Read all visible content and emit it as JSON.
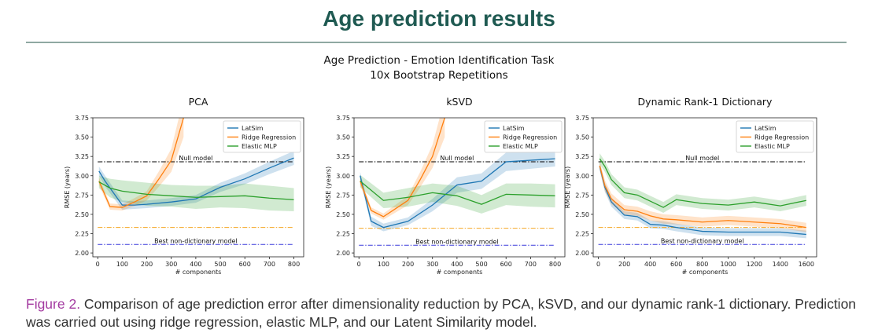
{
  "header": {
    "title": "Age prediction results"
  },
  "figure": {
    "suptitle_line1": "Age Prediction - Emotion Identification Task",
    "suptitle_line2": "10x Bootstrap Repetitions"
  },
  "caption": {
    "label": "Figure 2.",
    "text": " Comparison of age prediction error after dimensionality reduction by PCA, kSVD, and our dynamic rank-1 dictionary. Prediction was carried out using ridge regression, elastic MLP, and our Latent Similarity model."
  },
  "colors": {
    "latsim": "#1f77b4",
    "ridge": "#ff7f0e",
    "mlp": "#2ca02c",
    "null": "#000000",
    "best_orange": "#f5a623",
    "best_blue": "#3b3bdb"
  },
  "chart_data": [
    {
      "type": "line",
      "title": "PCA",
      "xlabel": "# components",
      "ylabel": "RMSE (years)",
      "xlim": [
        -20,
        840
      ],
      "ylim": [
        1.95,
        3.75
      ],
      "xticks": [
        0,
        100,
        200,
        300,
        400,
        500,
        600,
        700,
        800
      ],
      "yticks": [
        2.0,
        2.25,
        2.5,
        2.75,
        3.0,
        3.25,
        3.5,
        3.75
      ],
      "legend_position": "top-right",
      "series": [
        {
          "name": "LatSim",
          "color": "#1f77b4",
          "x": [
            5,
            30,
            100,
            150,
            200,
            300,
            400,
            500,
            600,
            700,
            800
          ],
          "y": [
            3.06,
            2.93,
            2.62,
            2.62,
            2.63,
            2.66,
            2.7,
            2.85,
            2.96,
            3.1,
            3.23
          ],
          "band": [
            0.06,
            0.07,
            0.06,
            0.05,
            0.05,
            0.05,
            0.05,
            0.06,
            0.07,
            0.08,
            0.09
          ]
        },
        {
          "name": "Ridge Regression",
          "color": "#ff7f0e",
          "x": [
            5,
            50,
            100,
            150,
            200,
            250,
            300,
            350
          ],
          "y": [
            2.93,
            2.6,
            2.59,
            2.66,
            2.74,
            2.96,
            3.2,
            3.75
          ],
          "band": [
            0.05,
            0.04,
            0.04,
            0.05,
            0.06,
            0.1,
            0.15,
            0.25
          ]
        },
        {
          "name": "Elastic MLP",
          "color": "#2ca02c",
          "x": [
            5,
            50,
            100,
            200,
            300,
            400,
            500,
            600,
            700,
            800
          ],
          "y": [
            2.92,
            2.84,
            2.8,
            2.76,
            2.74,
            2.72,
            2.73,
            2.74,
            2.71,
            2.69
          ],
          "band": [
            0.08,
            0.12,
            0.14,
            0.15,
            0.14,
            0.15,
            0.14,
            0.16,
            0.16,
            0.15
          ]
        }
      ],
      "reference_lines": [
        {
          "label": "Null model",
          "y": 3.18,
          "color": "#000000",
          "style": "dashdot"
        },
        {
          "label": "",
          "y": 2.33,
          "color": "#f5a623",
          "style": "dashdot"
        },
        {
          "label": "Best non-dictionary model",
          "y": 2.11,
          "color": "#3b3bdb",
          "style": "dashdot"
        }
      ]
    },
    {
      "type": "line",
      "title": "kSVD",
      "xlabel": "# components",
      "ylabel": "RMSE (years)",
      "xlim": [
        -20,
        840
      ],
      "ylim": [
        1.95,
        3.75
      ],
      "xticks": [
        0,
        100,
        200,
        300,
        400,
        500,
        600,
        700,
        800
      ],
      "yticks": [
        2.0,
        2.25,
        2.5,
        2.75,
        3.0,
        3.25,
        3.5,
        3.75
      ],
      "legend_position": "top-right",
      "series": [
        {
          "name": "LatSim",
          "color": "#1f77b4",
          "x": [
            5,
            50,
            100,
            200,
            300,
            400,
            500,
            600,
            700,
            800
          ],
          "y": [
            3.0,
            2.41,
            2.33,
            2.41,
            2.62,
            2.88,
            2.93,
            3.18,
            3.2,
            3.22
          ],
          "band": [
            0.05,
            0.06,
            0.05,
            0.05,
            0.08,
            0.1,
            0.1,
            0.12,
            0.11,
            0.1
          ]
        },
        {
          "name": "Ridge Regression",
          "color": "#ff7f0e",
          "x": [
            5,
            50,
            100,
            200,
            250,
            300,
            350
          ],
          "y": [
            2.93,
            2.55,
            2.47,
            2.68,
            2.95,
            3.25,
            3.75
          ],
          "band": [
            0.05,
            0.04,
            0.04,
            0.06,
            0.1,
            0.15,
            0.25
          ]
        },
        {
          "name": "Elastic MLP",
          "color": "#2ca02c",
          "x": [
            5,
            100,
            200,
            300,
            400,
            500,
            600,
            700,
            800
          ],
          "y": [
            2.93,
            2.68,
            2.72,
            2.78,
            2.74,
            2.63,
            2.76,
            2.75,
            2.74
          ],
          "band": [
            0.08,
            0.1,
            0.12,
            0.12,
            0.13,
            0.12,
            0.14,
            0.15,
            0.15
          ]
        }
      ],
      "reference_lines": [
        {
          "label": "Null model",
          "y": 3.18,
          "color": "#000000",
          "style": "dashdot"
        },
        {
          "label": "",
          "y": 2.32,
          "color": "#f5a623",
          "style": "dashdot"
        },
        {
          "label": "Best non-dictionary model",
          "y": 2.1,
          "color": "#3b3bdb",
          "style": "dashdot"
        }
      ]
    },
    {
      "type": "line",
      "title": "Dynamic Rank-1 Dictionary",
      "xlabel": "# components",
      "ylabel": "RMSE (years)",
      "xlim": [
        -40,
        1680
      ],
      "ylim": [
        1.95,
        3.75
      ],
      "xticks": [
        0,
        200,
        400,
        600,
        800,
        1000,
        1200,
        1400,
        1600
      ],
      "yticks": [
        2.0,
        2.25,
        2.5,
        2.75,
        3.0,
        3.25,
        3.5,
        3.75
      ],
      "legend_position": "top-right",
      "series": [
        {
          "name": "LatSim",
          "color": "#1f77b4",
          "x": [
            10,
            50,
            100,
            200,
            300,
            400,
            500,
            600,
            800,
            1000,
            1200,
            1400,
            1600
          ],
          "y": [
            3.12,
            2.85,
            2.66,
            2.49,
            2.47,
            2.37,
            2.36,
            2.33,
            2.28,
            2.27,
            2.27,
            2.27,
            2.24
          ],
          "band": [
            0.05,
            0.06,
            0.06,
            0.05,
            0.05,
            0.05,
            0.05,
            0.05,
            0.05,
            0.05,
            0.05,
            0.05,
            0.05
          ]
        },
        {
          "name": "Ridge Regression",
          "color": "#ff7f0e",
          "x": [
            10,
            50,
            100,
            200,
            300,
            400,
            500,
            600,
            800,
            1000,
            1200,
            1400,
            1600
          ],
          "y": [
            3.13,
            2.87,
            2.7,
            2.56,
            2.54,
            2.48,
            2.44,
            2.43,
            2.4,
            2.42,
            2.4,
            2.38,
            2.33
          ],
          "band": [
            0.06,
            0.07,
            0.07,
            0.06,
            0.06,
            0.06,
            0.06,
            0.06,
            0.06,
            0.06,
            0.06,
            0.06,
            0.06
          ]
        },
        {
          "name": "Elastic MLP",
          "color": "#2ca02c",
          "x": [
            10,
            50,
            100,
            200,
            300,
            400,
            500,
            600,
            800,
            1000,
            1200,
            1400,
            1600
          ],
          "y": [
            3.22,
            3.12,
            2.95,
            2.78,
            2.75,
            2.67,
            2.59,
            2.69,
            2.64,
            2.62,
            2.66,
            2.61,
            2.68
          ],
          "band": [
            0.07,
            0.07,
            0.07,
            0.07,
            0.07,
            0.07,
            0.07,
            0.07,
            0.07,
            0.07,
            0.07,
            0.07,
            0.07
          ]
        }
      ],
      "reference_lines": [
        {
          "label": "Null model",
          "y": 3.18,
          "color": "#000000",
          "style": "dashdot"
        },
        {
          "label": "",
          "y": 2.33,
          "color": "#f5a623",
          "style": "dashdot"
        },
        {
          "label": "Best non-dictionary model",
          "y": 2.11,
          "color": "#3b3bdb",
          "style": "dashdot"
        }
      ]
    }
  ]
}
